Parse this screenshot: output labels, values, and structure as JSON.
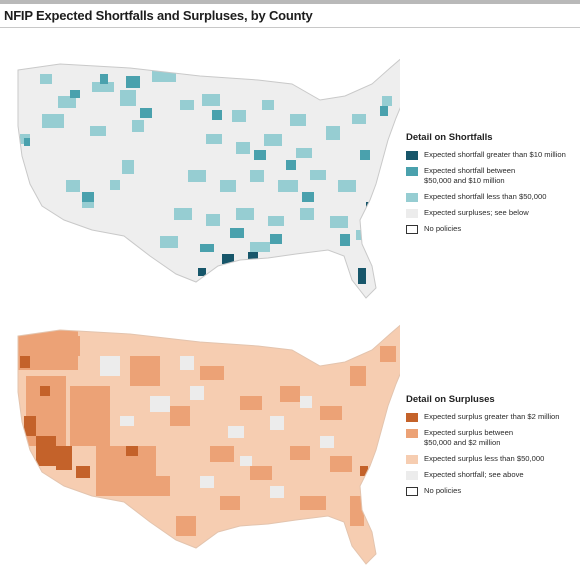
{
  "title": "NFIP Expected Shortfalls and Surpluses, by County",
  "maps": {
    "shortfalls": {
      "legend_title": "Detail on Shortfalls",
      "items": [
        {
          "label": "Expected shortfall greater than $10 million",
          "color": "#17566a"
        },
        {
          "label_line1": "Expected shortfall between",
          "label_line2": "$50,000 and $10 million",
          "color": "#4aa1ad"
        },
        {
          "label": "Expected shortfall less than $50,000",
          "color": "#96cdd2"
        },
        {
          "label": "Expected surpluses; see below",
          "color": "#ececec"
        },
        {
          "label": "No policies",
          "color": "#ffffff"
        }
      ]
    },
    "surpluses": {
      "legend_title": "Detail on Surpluses",
      "items": [
        {
          "label": "Expected surplus greater than $2 million",
          "color": "#c4622a"
        },
        {
          "label_line1": "Expected surplus between",
          "label_line2": "$50,000 and $2 million",
          "color": "#eca276"
        },
        {
          "label": "Expected surplus less than $50,000",
          "color": "#f6cdb1"
        },
        {
          "label": "Expected shortfall; see above",
          "color": "#ececec"
        },
        {
          "label": "No policies",
          "color": "#ffffff"
        }
      ]
    }
  }
}
